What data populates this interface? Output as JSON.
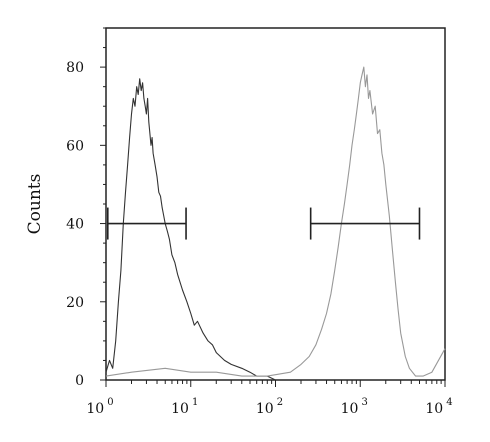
{
  "chart_data": {
    "type": "line",
    "title": "",
    "xlabel": "",
    "ylabel": "Counts",
    "x_scale": "log",
    "xlim": [
      1,
      10000
    ],
    "ylim": [
      0,
      90
    ],
    "grid": false,
    "legend": "none",
    "x_ticks": [
      {
        "base": "10",
        "exp": "0",
        "value": 1
      },
      {
        "base": "10",
        "exp": "1",
        "value": 10
      },
      {
        "base": "10",
        "exp": "2",
        "value": 100
      },
      {
        "base": "10",
        "exp": "3",
        "value": 1000
      },
      {
        "base": "10",
        "exp": "4",
        "value": 10000
      }
    ],
    "y_ticks": [
      "0",
      "20",
      "40",
      "60",
      "80"
    ],
    "series": [
      {
        "color": "#333333",
        "x": [
          1.0,
          1.1,
          1.2,
          1.3,
          1.4,
          1.5,
          1.6,
          1.7,
          1.8,
          1.9,
          2.0,
          2.1,
          2.2,
          2.3,
          2.4,
          2.5,
          2.6,
          2.7,
          2.8,
          2.9,
          3.0,
          3.1,
          3.2,
          3.3,
          3.4,
          3.5,
          3.6,
          3.8,
          4.0,
          4.2,
          4.4,
          4.6,
          4.8,
          5.0,
          5.3,
          5.6,
          6.0,
          6.5,
          7.0,
          8.0,
          9.0,
          10,
          11,
          12,
          14,
          16,
          18,
          20,
          25,
          30,
          40,
          50,
          60,
          80,
          100
        ],
        "y": [
          2,
          5,
          3,
          10,
          20,
          28,
          40,
          48,
          55,
          62,
          68,
          72,
          70,
          75,
          73,
          77,
          74,
          76,
          72,
          70,
          68,
          72,
          66,
          63,
          60,
          62,
          58,
          55,
          52,
          48,
          47,
          44,
          42,
          40,
          38,
          36,
          32,
          30,
          27,
          23,
          20,
          17,
          14,
          15,
          12,
          10,
          9,
          7,
          5,
          4,
          3,
          2,
          1,
          1,
          0
        ]
      },
      {
        "color": "#999999",
        "x": [
          1.0,
          2,
          5,
          10,
          20,
          40,
          80,
          150,
          200,
          250,
          300,
          350,
          400,
          450,
          500,
          550,
          600,
          650,
          700,
          750,
          800,
          850,
          900,
          950,
          1000,
          1050,
          1100,
          1150,
          1200,
          1250,
          1300,
          1400,
          1500,
          1600,
          1700,
          1800,
          1900,
          2000,
          2200,
          2400,
          2600,
          2800,
          3000,
          3400,
          3800,
          4500,
          5500,
          7000,
          10000
        ],
        "y": [
          1,
          2,
          3,
          2,
          2,
          1,
          1,
          2,
          4,
          6,
          9,
          13,
          17,
          22,
          28,
          34,
          40,
          45,
          50,
          55,
          60,
          64,
          68,
          72,
          76,
          78,
          80,
          75,
          78,
          72,
          74,
          68,
          70,
          63,
          64,
          58,
          55,
          50,
          42,
          33,
          25,
          18,
          12,
          6,
          3,
          1,
          1,
          2,
          8
        ]
      }
    ],
    "gates": [
      {
        "x_start": 1.05,
        "x_end": 8.8,
        "y": 40
      },
      {
        "x_start": 260,
        "x_end": 5000,
        "y": 40
      }
    ]
  }
}
